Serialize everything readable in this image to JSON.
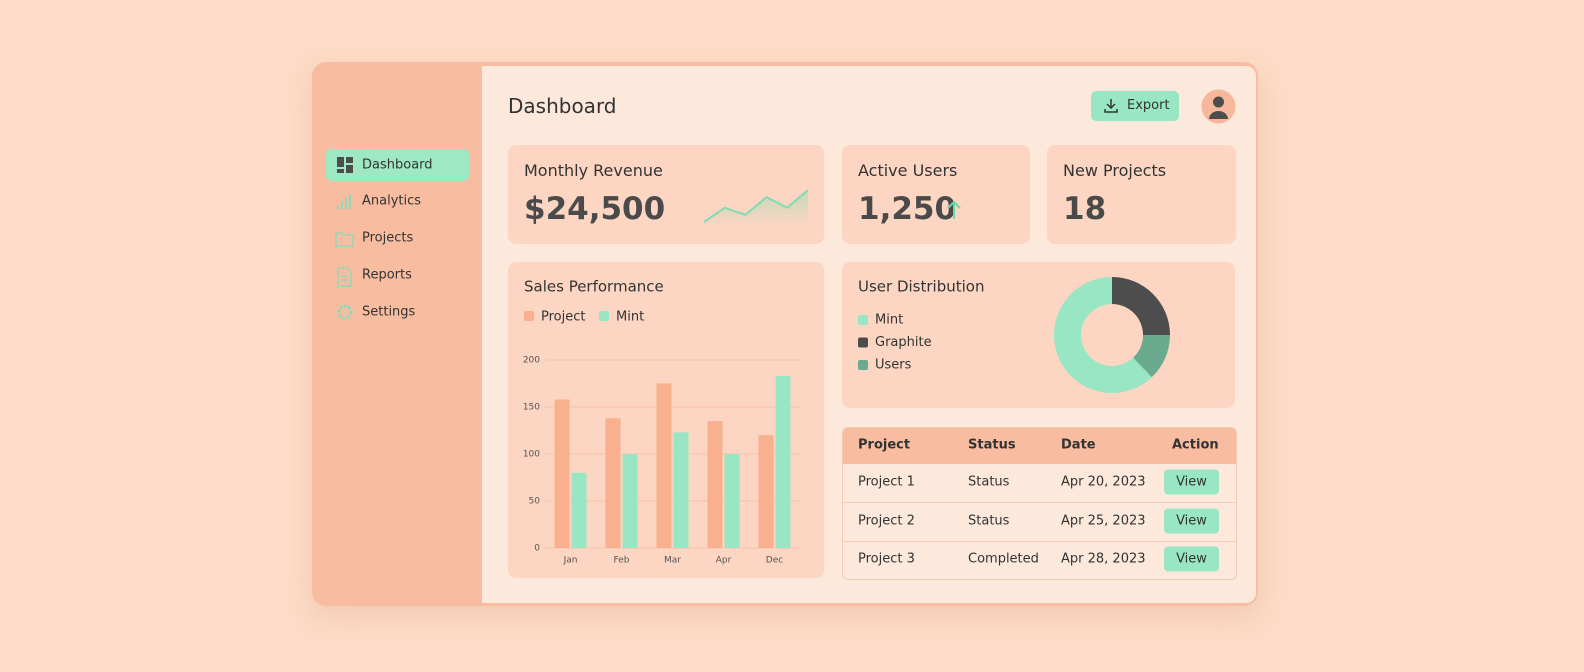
{
  "sidebar": {
    "items": [
      "Dashboard",
      "Analytics",
      "Projects",
      "Reports",
      "Settings"
    ],
    "active": 0
  },
  "header": {
    "title": "Dashboard",
    "export": "Export"
  },
  "cards": [
    {
      "title": "Monthly Revenue",
      "value": "$24,500"
    },
    {
      "title": "Active Users",
      "value": "1,250"
    },
    {
      "title": "New Projects",
      "value": "18"
    }
  ],
  "revenue_sparkline": {
    "type": "line",
    "values": [
      1,
      5,
      3,
      8,
      5,
      10
    ],
    "color": "#7fdcb3"
  },
  "sales_chart": {
    "type": "bar",
    "title": "Sales Performance",
    "categories": [
      "Jan",
      "Feb",
      "Mar",
      "Apr",
      "Dec"
    ],
    "series": [
      {
        "name": "Project",
        "color": "#f8b08e",
        "values": [
          158,
          138,
          175,
          135,
          120
        ]
      },
      {
        "name": "Mint",
        "color": "#98e6c3",
        "values": [
          80,
          100,
          123,
          100,
          183
        ]
      }
    ],
    "ylim": [
      0,
      200
    ],
    "yticks": [
      0,
      50,
      100,
      150,
      200
    ],
    "grid": true
  },
  "user_distribution": {
    "type": "pie",
    "title": "User Distribution",
    "categories": [
      "Mint",
      "Graphite",
      "Users"
    ],
    "values": [
      62,
      25,
      13
    ],
    "colors": [
      "#98e6c3",
      "#4d4d4d",
      "#6aaa8e"
    ]
  },
  "table": {
    "headers": [
      "Project",
      "Status",
      "Date",
      "Action"
    ],
    "rows": [
      [
        "Project 1",
        "Status",
        "Apr 20, 2023",
        "View"
      ],
      [
        "Project 2",
        "Status",
        "Apr 25, 2023",
        "View"
      ],
      [
        "Project 3",
        "Completed",
        "Apr 28, 2023",
        "View"
      ]
    ]
  }
}
